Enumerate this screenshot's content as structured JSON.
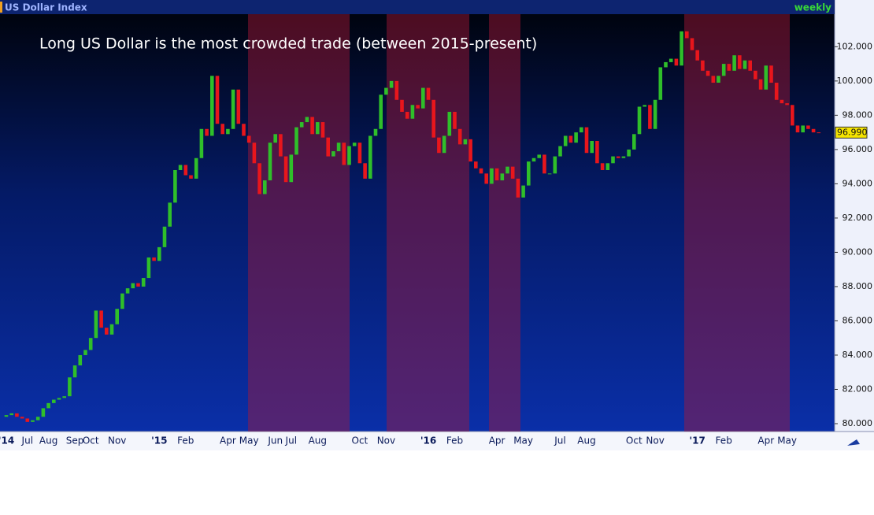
{
  "chart_data": {
    "type": "candlestick",
    "header": "US Dollar Index",
    "interval": "weekly",
    "title": "Long US Dollar is the most crowded trade (between 2015-present)",
    "up_color": "#2fbf2a",
    "down_color": "#e8161c",
    "ylim": [
      79.54,
      103.9
    ],
    "yticks": [
      {
        "value": 80,
        "label": "80.000"
      },
      {
        "value": 82,
        "label": "82.000"
      },
      {
        "value": 84,
        "label": "84.000"
      },
      {
        "value": 86,
        "label": "86.000"
      },
      {
        "value": 88,
        "label": "88.000"
      },
      {
        "value": 90,
        "label": "90.000"
      },
      {
        "value": 92,
        "label": "92.000"
      },
      {
        "value": 94,
        "label": "94.000"
      },
      {
        "value": 96,
        "label": "96.000"
      },
      {
        "value": 98,
        "label": "98.000"
      },
      {
        "value": 100,
        "label": "100.000"
      },
      {
        "value": 102,
        "label": "102.000"
      }
    ],
    "last_price": {
      "value": 96.99,
      "label": "96.990"
    },
    "categories": [
      "'14",
      null,
      null,
      null,
      "Jul",
      null,
      null,
      null,
      "Aug",
      null,
      null,
      null,
      null,
      "Sep",
      null,
      null,
      "Oct",
      null,
      null,
      null,
      null,
      "Nov",
      null,
      null,
      null,
      null,
      null,
      null,
      null,
      "'15",
      null,
      null,
      null,
      null,
      "Feb",
      null,
      null,
      null,
      null,
      null,
      null,
      null,
      "Apr",
      null,
      null,
      null,
      "May",
      null,
      null,
      null,
      null,
      "Jun",
      null,
      null,
      "Jul",
      null,
      null,
      null,
      null,
      "Aug",
      null,
      null,
      null,
      null,
      null,
      null,
      null,
      "Oct",
      null,
      null,
      null,
      null,
      "Nov",
      null,
      null,
      null,
      null,
      null,
      null,
      null,
      "'16",
      null,
      null,
      null,
      null,
      "Feb",
      null,
      null,
      null,
      null,
      null,
      null,
      null,
      "Apr",
      null,
      null,
      null,
      null,
      "May",
      null,
      null,
      null,
      null,
      null,
      null,
      "Jul",
      null,
      null,
      null,
      null,
      "Aug",
      null,
      null,
      null,
      null,
      null,
      null,
      null,
      null,
      "Oct",
      null,
      null,
      null,
      "Nov",
      null,
      null,
      null,
      null,
      null,
      null,
      null,
      "'17",
      null,
      null,
      null,
      null,
      "Feb",
      null,
      null,
      null,
      null,
      null,
      null,
      null,
      "Apr",
      null,
      null,
      null,
      "May",
      null,
      null,
      null,
      null,
      null,
      null
    ],
    "open": [
      80.4,
      80.5,
      80.6,
      80.4,
      80.3,
      80.1,
      80.2,
      80.4,
      80.9,
      81.2,
      81.4,
      81.5,
      81.6,
      82.7,
      83.4,
      84.0,
      84.3,
      85.0,
      86.6,
      85.6,
      85.2,
      85.8,
      86.7,
      87.6,
      87.9,
      88.2,
      88.0,
      88.5,
      89.7,
      89.5,
      90.3,
      91.5,
      92.9,
      94.8,
      95.1,
      94.5,
      94.3,
      95.5,
      97.2,
      96.8,
      100.3,
      97.5,
      96.9,
      97.2,
      99.5,
      97.5,
      96.8,
      96.4,
      95.2,
      93.4,
      94.2,
      96.4,
      96.9,
      95.6,
      94.1,
      95.7,
      97.3,
      97.6,
      97.9,
      96.9,
      97.6,
      96.7,
      95.6,
      95.9,
      96.4,
      95.1,
      96.2,
      96.4,
      95.2,
      94.3,
      96.8,
      97.2,
      99.2,
      99.6,
      100.0,
      98.9,
      98.2,
      97.8,
      98.6,
      98.4,
      99.6,
      98.9,
      96.7,
      95.8,
      96.8,
      98.2,
      97.2,
      96.3,
      96.6,
      95.3,
      94.9,
      94.6,
      94.0,
      94.9,
      94.2,
      94.6,
      95.0,
      94.3,
      93.2,
      93.9,
      95.3,
      95.5,
      95.7,
      94.6,
      94.6,
      95.6,
      96.2,
      96.8,
      96.4,
      97.0,
      97.3,
      95.8,
      96.5,
      95.2,
      94.8,
      95.2,
      95.6,
      95.5,
      95.6,
      96.0,
      96.9,
      98.5,
      98.6,
      97.2,
      98.9,
      100.8,
      101.1,
      101.3,
      100.9,
      102.9,
      102.5,
      101.8,
      101.2,
      100.6,
      100.3,
      99.9,
      100.3,
      101.0,
      100.6,
      101.5,
      100.7,
      101.2,
      100.6,
      100.1,
      99.5,
      100.9,
      99.9,
      98.9,
      98.7,
      98.6,
      97.4,
      97.0,
      97.4,
      97.2,
      97.0
    ],
    "close": [
      80.5,
      80.6,
      80.4,
      80.3,
      80.1,
      80.2,
      80.4,
      80.9,
      81.2,
      81.4,
      81.5,
      81.6,
      82.7,
      83.4,
      84.0,
      84.3,
      85.0,
      86.6,
      85.6,
      85.2,
      85.8,
      86.7,
      87.6,
      87.9,
      88.2,
      88.0,
      88.5,
      89.7,
      89.5,
      90.3,
      91.5,
      92.9,
      94.8,
      95.1,
      94.5,
      94.3,
      95.5,
      97.2,
      96.8,
      100.3,
      97.5,
      96.9,
      97.2,
      99.5,
      97.5,
      96.8,
      96.4,
      95.2,
      93.4,
      94.2,
      96.4,
      96.9,
      95.6,
      94.1,
      95.7,
      97.3,
      97.6,
      97.9,
      96.9,
      97.6,
      96.7,
      95.6,
      95.9,
      96.4,
      95.1,
      96.2,
      96.4,
      95.2,
      94.3,
      96.8,
      97.2,
      99.2,
      99.6,
      100.0,
      98.9,
      98.2,
      97.8,
      98.6,
      98.4,
      99.6,
      98.9,
      96.7,
      95.8,
      96.8,
      98.2,
      97.2,
      96.3,
      96.6,
      95.3,
      94.9,
      94.6,
      94.0,
      94.9,
      94.2,
      94.6,
      95.0,
      94.3,
      93.2,
      93.9,
      95.3,
      95.5,
      95.7,
      94.6,
      94.6,
      95.6,
      96.2,
      96.8,
      96.4,
      97.0,
      97.3,
      95.8,
      96.5,
      95.2,
      94.8,
      95.2,
      95.6,
      95.5,
      95.6,
      96.0,
      96.9,
      98.5,
      98.6,
      97.2,
      98.9,
      100.8,
      101.1,
      101.3,
      100.9,
      102.9,
      102.5,
      101.8,
      101.2,
      100.6,
      100.3,
      99.9,
      100.3,
      101.0,
      100.6,
      101.5,
      100.7,
      101.2,
      100.6,
      100.1,
      99.5,
      100.9,
      99.9,
      98.9,
      98.7,
      98.6,
      97.4,
      97.0,
      97.4,
      97.2,
      97.0,
      96.99
    ]
  }
}
